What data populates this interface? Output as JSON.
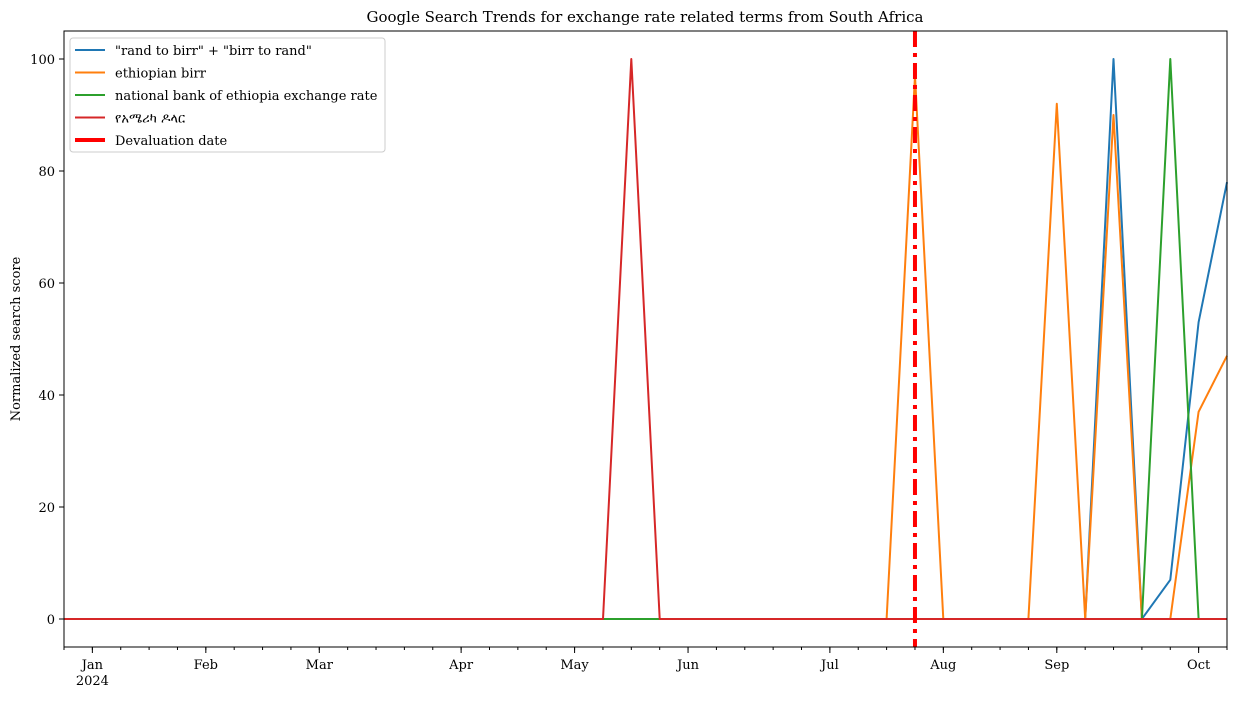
{
  "chart_data": {
    "type": "line",
    "title": "Google Search Trends for exchange rate related terms from South Africa",
    "xlabel": "",
    "ylabel": "Normalized search score",
    "ylim": [
      -5,
      105
    ],
    "yticks": [
      0,
      20,
      40,
      60,
      80,
      100
    ],
    "grid": false,
    "legend_position": "top-left",
    "x": [
      "2023-12-31",
      "2024-01-07",
      "2024-01-14",
      "2024-01-21",
      "2024-01-28",
      "2024-02-04",
      "2024-02-11",
      "2024-02-18",
      "2024-02-25",
      "2024-03-03",
      "2024-03-10",
      "2024-03-17",
      "2024-03-24",
      "2024-03-31",
      "2024-04-07",
      "2024-04-14",
      "2024-04-21",
      "2024-04-28",
      "2024-05-05",
      "2024-05-12",
      "2024-05-19",
      "2024-05-26",
      "2024-06-02",
      "2024-06-09",
      "2024-06-16",
      "2024-06-23",
      "2024-06-30",
      "2024-07-07",
      "2024-07-14",
      "2024-07-21",
      "2024-07-28",
      "2024-08-04",
      "2024-08-11",
      "2024-08-18",
      "2024-08-25",
      "2024-09-01",
      "2024-09-08",
      "2024-09-15",
      "2024-09-22",
      "2024-09-29",
      "2024-10-06",
      "2024-10-13"
    ],
    "xticks": [
      {
        "label": "Jan",
        "sublabel": "2024",
        "index": 1
      },
      {
        "label": "Feb",
        "index": 5
      },
      {
        "label": "Mar",
        "index": 9
      },
      {
        "label": "Apr",
        "index": 14
      },
      {
        "label": "May",
        "index": 18
      },
      {
        "label": "Jun",
        "index": 22
      },
      {
        "label": "Jul",
        "index": 27
      },
      {
        "label": "Aug",
        "index": 31
      },
      {
        "label": "Sep",
        "index": 35
      },
      {
        "label": "Oct",
        "index": 40
      }
    ],
    "series": [
      {
        "name": "\"rand to birr\" + \"birr to rand\"",
        "color": "#1f77b4",
        "values": [
          0,
          0,
          0,
          0,
          0,
          0,
          0,
          0,
          0,
          0,
          0,
          0,
          0,
          0,
          0,
          0,
          0,
          0,
          0,
          0,
          0,
          0,
          0,
          0,
          0,
          0,
          0,
          0,
          0,
          0,
          0,
          0,
          0,
          0,
          0,
          0,
          0,
          100,
          0,
          7,
          53,
          78
        ]
      },
      {
        "name": "ethiopian birr",
        "color": "#ff7f0e",
        "values": [
          0,
          0,
          0,
          0,
          0,
          0,
          0,
          0,
          0,
          0,
          0,
          0,
          0,
          0,
          0,
          0,
          0,
          0,
          0,
          0,
          0,
          0,
          0,
          0,
          0,
          0,
          0,
          0,
          0,
          0,
          97,
          0,
          0,
          0,
          0,
          92,
          0,
          90,
          0,
          0,
          37,
          47
        ]
      },
      {
        "name": "national bank of ethiopia exchange rate",
        "color": "#2ca02c",
        "values": [
          0,
          0,
          0,
          0,
          0,
          0,
          0,
          0,
          0,
          0,
          0,
          0,
          0,
          0,
          0,
          0,
          0,
          0,
          0,
          0,
          0,
          0,
          0,
          0,
          0,
          0,
          0,
          0,
          0,
          0,
          0,
          0,
          0,
          0,
          0,
          0,
          0,
          0,
          0,
          100,
          0,
          0
        ]
      },
      {
        "name": "የአሜሪካ ዶላር",
        "color": "#d62728",
        "values": [
          0,
          0,
          0,
          0,
          0,
          0,
          0,
          0,
          0,
          0,
          0,
          0,
          0,
          0,
          0,
          0,
          0,
          0,
          0,
          0,
          100,
          0,
          0,
          0,
          0,
          0,
          0,
          0,
          0,
          0,
          0,
          0,
          0,
          0,
          0,
          0,
          0,
          0,
          0,
          0,
          0,
          0
        ]
      }
    ],
    "vline": {
      "name": "Devaluation date",
      "x": "2024-07-28",
      "color": "#ff0000",
      "style": "dashdot"
    }
  }
}
